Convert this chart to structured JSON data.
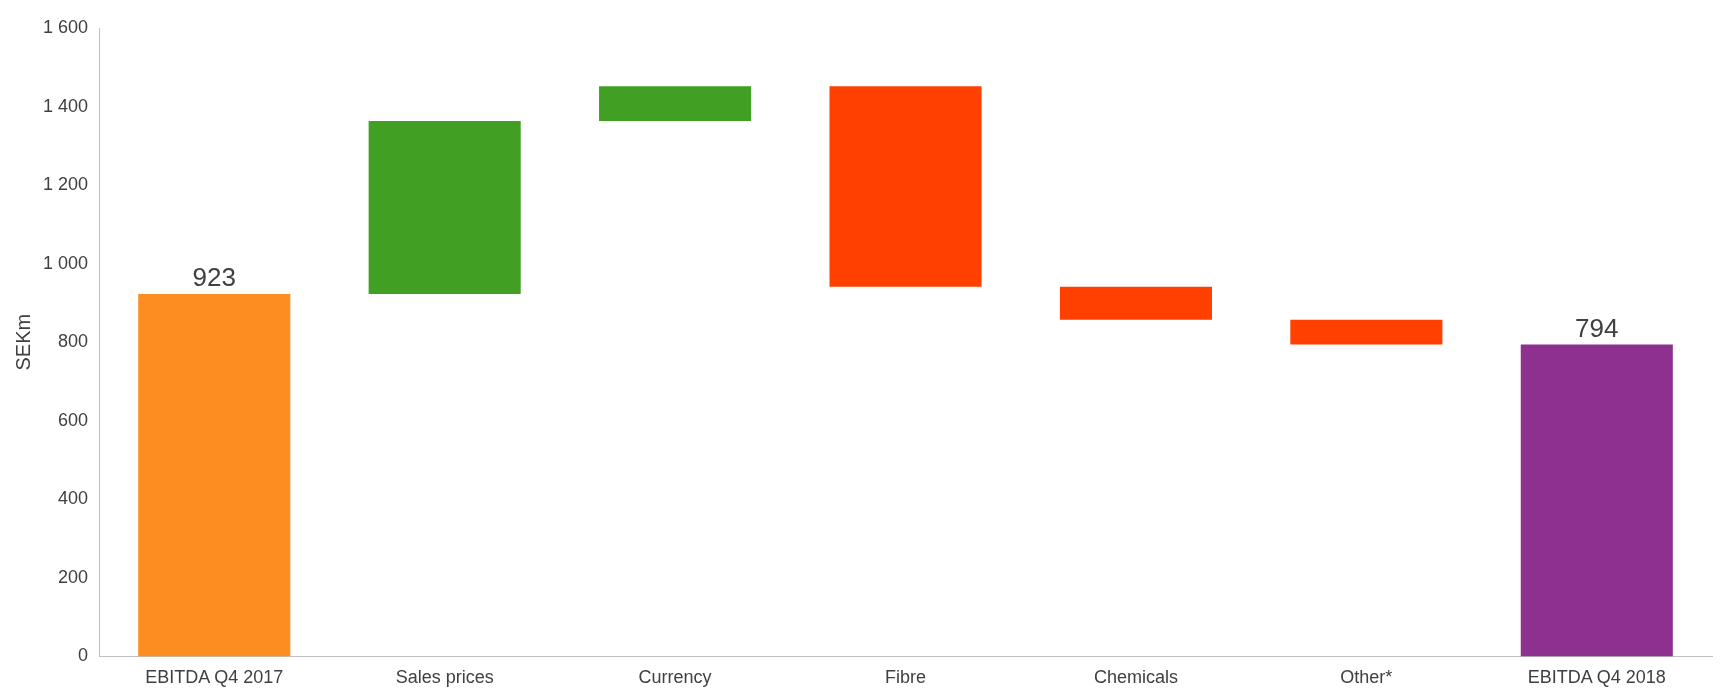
{
  "chart_data": {
    "type": "bar",
    "ylabel": "SEKm",
    "categories": [
      "EBITDA Q4 2017",
      "Sales prices",
      "Currency",
      "Fibre",
      "Chemicals",
      "Other*",
      "EBITDA Q4 2018"
    ],
    "base": [
      0,
      923,
      1363,
      1452,
      941,
      857,
      0
    ],
    "values": [
      923,
      440,
      89,
      -511,
      -84,
      -63,
      794
    ],
    "colors": [
      "#fd8d20",
      "#41a023",
      "#41a023",
      "#ff4000",
      "#ff4000",
      "#ff4000",
      "#8e318e"
    ],
    "value_labels": [
      "923",
      null,
      null,
      null,
      null,
      null,
      "794"
    ],
    "ylim": [
      0,
      1600
    ],
    "yticks": [
      0,
      200,
      400,
      600,
      800,
      {
        "value": 1000,
        "label": "1 000"
      },
      {
        "value": 1200,
        "label": "1 200"
      },
      {
        "value": 1400,
        "label": "1 400"
      },
      {
        "value": 1600,
        "label": "1 600"
      }
    ],
    "grid": false,
    "legend": false
  }
}
